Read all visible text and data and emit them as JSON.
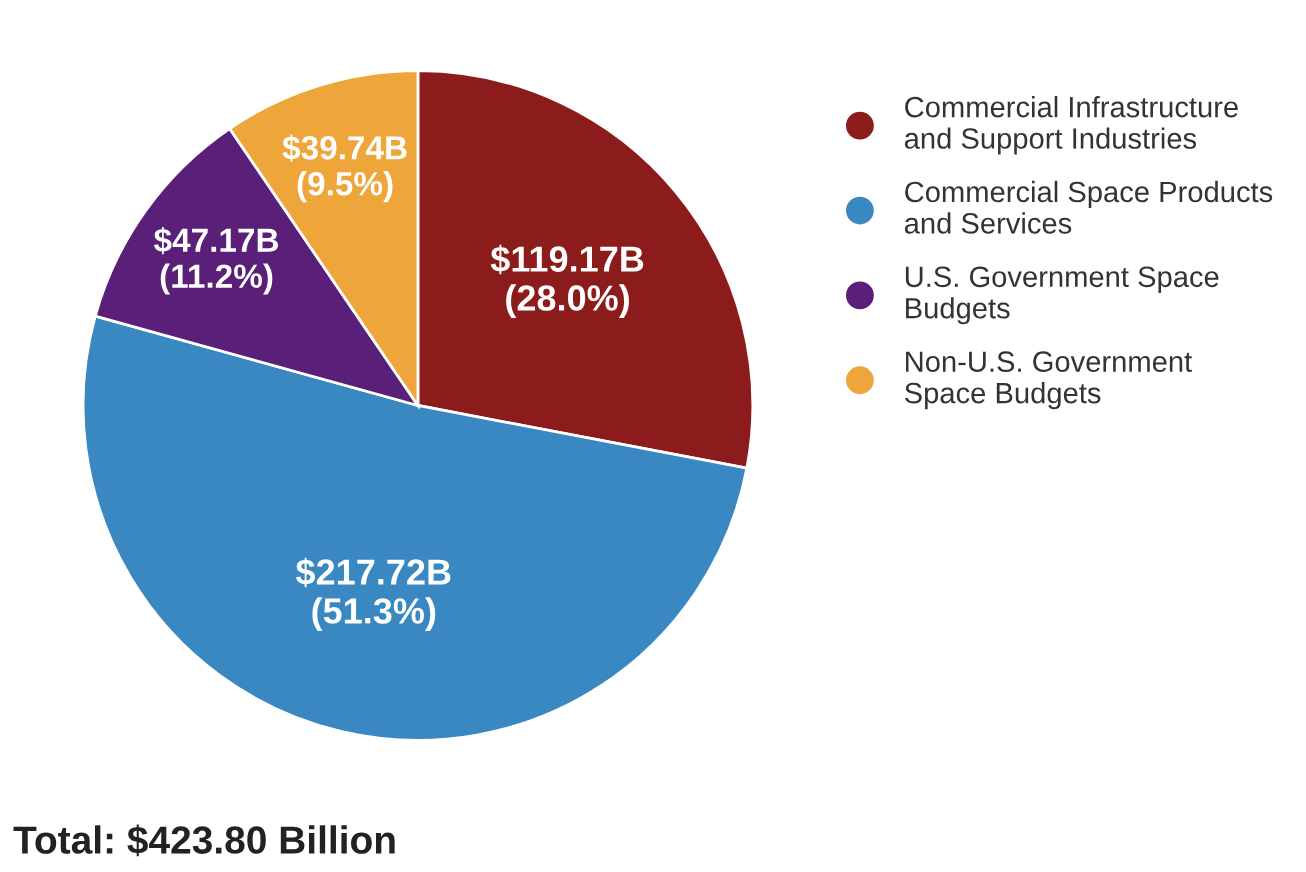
{
  "chart_data": {
    "type": "pie",
    "categories": [
      "Commercial Infrastructure\nand Support Industries",
      "Commercial Space Products\nand Services",
      "U.S. Government Space\nBudgets",
      "Non-U.S. Government\nSpace Budgets"
    ],
    "values": [
      28.0,
      51.3,
      11.2,
      9.5
    ],
    "value_labels": [
      "$119.17B\n(28.0%)",
      "$217.72B\n(51.3%)",
      "$47.17B\n(11.2%)",
      "$39.74B\n(9.5%)"
    ],
    "colors": [
      "#8c1c1c",
      "#3a88c2",
      "#5a1f78",
      "#eea63a"
    ],
    "legend": "top right",
    "annotations": [
      "Total: $423.80 Billion"
    ]
  }
}
